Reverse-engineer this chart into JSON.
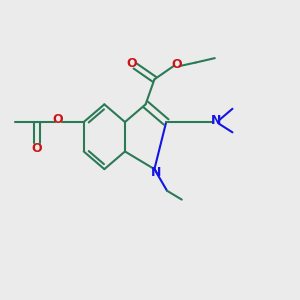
{
  "bg_color": "#ebebeb",
  "bond_color": "#2a7a56",
  "n_color": "#1414e6",
  "o_color": "#cc1414",
  "line_width": 1.5,
  "figsize": [
    3.0,
    3.0
  ],
  "dpi": 100,
  "xlim": [
    0,
    10
  ],
  "ylim": [
    0,
    10
  ]
}
